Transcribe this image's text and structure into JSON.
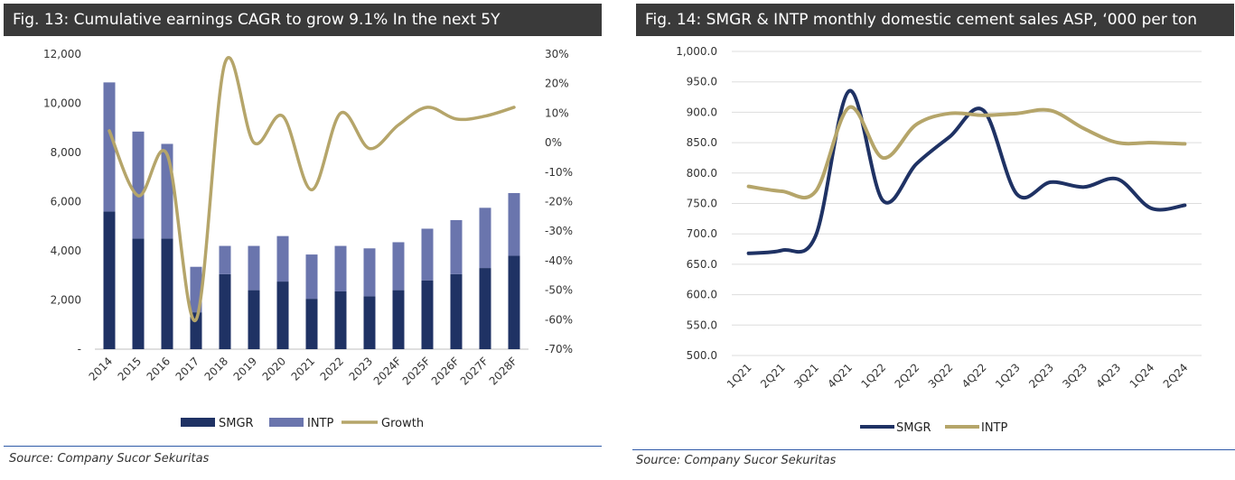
{
  "left": {
    "title": "Fig. 13: Cumulative earnings CAGR to grow 9.1% In the next 5Y",
    "source": "Source: Company Sucor Sekuritas"
  },
  "right": {
    "title": "Fig. 14: SMGR & INTP monthly domestic cement sales ASP, ‘000 per ton",
    "source": "Source: Company Sucor Sekuritas"
  },
  "colors": {
    "smgr": "#1f3264",
    "intp": "#6a75ad",
    "growth": "#b5a56a",
    "title_bg": "#3a3a3a",
    "rule": "#2f5aa8"
  },
  "chart_data": [
    {
      "type": "bar",
      "stacked": true,
      "title": "Fig. 13: Cumulative earnings CAGR to grow 9.1% In the next 5Y",
      "categories": [
        "2014",
        "2015",
        "2016",
        "2017",
        "2018",
        "2019",
        "2020",
        "2021",
        "2022",
        "2023",
        "2024F",
        "2025F",
        "2026F",
        "2027F",
        "2028F"
      ],
      "series": [
        {
          "name": "SMGR",
          "type": "bar",
          "values": [
            5600,
            4500,
            4500,
            1500,
            3050,
            2400,
            2750,
            2050,
            2350,
            2150,
            2400,
            2800,
            3050,
            3300,
            3800
          ]
        },
        {
          "name": "INTP",
          "type": "bar",
          "values": [
            5250,
            4350,
            3850,
            1850,
            1150,
            1800,
            1850,
            1800,
            1850,
            1950,
            1950,
            2100,
            2200,
            2450,
            2550
          ]
        },
        {
          "name": "Growth",
          "type": "line",
          "axis": "right",
          "values": [
            4,
            -18,
            -4,
            -60,
            27,
            0,
            9,
            -16,
            10,
            -2,
            6,
            12,
            8,
            9,
            12
          ]
        }
      ],
      "y_left": {
        "ylim": [
          0,
          12000
        ],
        "ticks": [
          "-",
          "2,000",
          "4,000",
          "6,000",
          "8,000",
          "10,000",
          "12,000"
        ],
        "tick_values": [
          0,
          2000,
          4000,
          6000,
          8000,
          10000,
          12000
        ]
      },
      "y_right": {
        "ylim": [
          -70,
          30
        ],
        "ticks": [
          "-70%",
          "-60%",
          "-50%",
          "-40%",
          "-30%",
          "-20%",
          "-10%",
          "0%",
          "10%",
          "20%",
          "30%"
        ],
        "tick_values": [
          -70,
          -60,
          -50,
          -40,
          -30,
          -20,
          -10,
          0,
          10,
          20,
          30
        ]
      },
      "legend": [
        "SMGR",
        "INTP",
        "Growth"
      ],
      "legend_position": "bottom",
      "grid": false
    },
    {
      "type": "line",
      "title": "Fig. 14: SMGR & INTP monthly domestic cement sales ASP, ‘000 per ton",
      "categories": [
        "1Q21",
        "2Q21",
        "3Q21",
        "4Q21",
        "1Q22",
        "2Q22",
        "3Q22",
        "4Q22",
        "1Q23",
        "2Q23",
        "3Q23",
        "4Q23",
        "1Q24",
        "2Q24"
      ],
      "series": [
        {
          "name": "SMGR",
          "values": [
            668,
            673,
            697,
            935,
            755,
            815,
            860,
            903,
            765,
            785,
            777,
            790,
            742,
            747
          ]
        },
        {
          "name": "INTP",
          "values": [
            778,
            770,
            770,
            908,
            825,
            880,
            898,
            895,
            898,
            903,
            873,
            850,
            850,
            848
          ]
        }
      ],
      "ylim": [
        500,
        1000
      ],
      "y_ticks": [
        "500.0",
        "550.0",
        "600.0",
        "650.0",
        "700.0",
        "750.0",
        "800.0",
        "850.0",
        "900.0",
        "950.0",
        "1,000.0"
      ],
      "y_tick_values": [
        500,
        550,
        600,
        650,
        700,
        750,
        800,
        850,
        900,
        950,
        1000
      ],
      "legend": [
        "SMGR",
        "INTP"
      ],
      "legend_position": "bottom",
      "grid": true
    }
  ]
}
